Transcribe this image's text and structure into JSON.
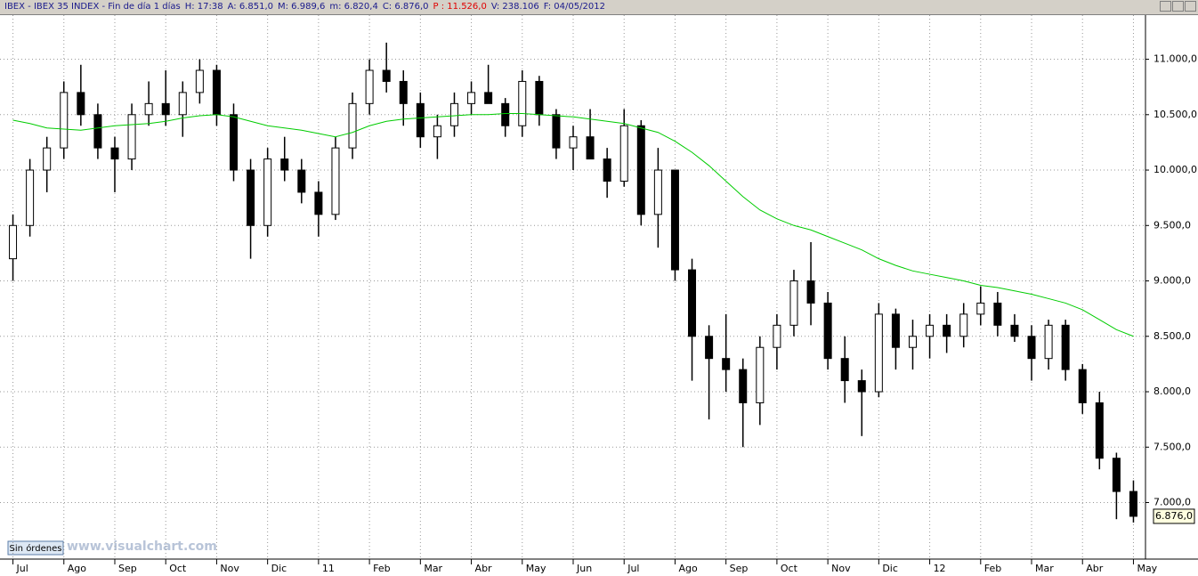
{
  "header": {
    "items": [
      {
        "text": "IBEX - IBEX 35 INDEX - Fin de día 1 días"
      },
      {
        "text": "H: 17:38"
      },
      {
        "text": "A: 6.851,0"
      },
      {
        "text": "M: 6.989,6"
      },
      {
        "text": "m: 6.820,4"
      },
      {
        "text": "C: 6.876,0"
      },
      {
        "text": "P : 11.526,0",
        "color": "#e00000"
      },
      {
        "text": "V: 238.106"
      },
      {
        "text": "F: 04/05/2012"
      }
    ]
  },
  "status": "Sin órdenes",
  "watermark": "www.visualchart.com",
  "chart_data": {
    "type": "candlestick",
    "categories": [
      "Jul",
      null,
      null,
      "Ago",
      null,
      null,
      "Sep",
      null,
      null,
      "Oct",
      null,
      null,
      "Nov",
      null,
      null,
      "Dic",
      null,
      null,
      "11",
      null,
      null,
      "Feb",
      null,
      null,
      "Mar",
      null,
      null,
      "Abr",
      null,
      null,
      "May",
      null,
      null,
      "Jun",
      null,
      null,
      "Jul",
      null,
      null,
      "Ago",
      null,
      null,
      "Sep",
      null,
      null,
      "Oct",
      null,
      null,
      "Nov",
      null,
      null,
      "Dic",
      null,
      null,
      "12",
      null,
      null,
      "Feb",
      null,
      null,
      "Mar",
      null,
      null,
      "Abr",
      null,
      null,
      "May"
    ],
    "open": [
      9200,
      9500,
      10000,
      10200,
      10700,
      10500,
      10200,
      10100,
      10500,
      10600,
      10500,
      10700,
      10900,
      10500,
      10000,
      9500,
      10100,
      10000,
      9800,
      9600,
      10200,
      10600,
      10900,
      10800,
      10600,
      10300,
      10400,
      10600,
      10700,
      10600,
      10400,
      10800,
      10500,
      10200,
      10300,
      10100,
      9900,
      10400,
      9600,
      10000,
      9100,
      8500,
      8300,
      8200,
      7900,
      8400,
      8600,
      9000,
      8800,
      8300,
      8100,
      8000,
      8700,
      8400,
      8500,
      8600,
      8500,
      8700,
      8800,
      8600,
      8500,
      8300,
      8600,
      8200,
      7900,
      7400,
      7100
    ],
    "high": [
      9600,
      10100,
      10300,
      10800,
      10950,
      10600,
      10300,
      10600,
      10800,
      10900,
      10800,
      11000,
      10950,
      10600,
      10100,
      10200,
      10300,
      10100,
      9900,
      10300,
      10700,
      11000,
      11150,
      10900,
      10700,
      10500,
      10700,
      10800,
      10950,
      10650,
      10900,
      10850,
      10550,
      10400,
      10550,
      10200,
      10550,
      10450,
      10200,
      10000,
      9200,
      8600,
      8700,
      8300,
      8500,
      8700,
      9100,
      9350,
      8900,
      8500,
      8200,
      8800,
      8750,
      8650,
      8700,
      8700,
      8800,
      8950,
      8900,
      8700,
      8600,
      8650,
      8650,
      8250,
      8000,
      7450,
      7200
    ],
    "low": [
      9000,
      9400,
      9800,
      10100,
      10400,
      10100,
      9800,
      10000,
      10400,
      10400,
      10300,
      10600,
      10400,
      9900,
      9200,
      9400,
      9900,
      9700,
      9400,
      9550,
      10100,
      10500,
      10700,
      10400,
      10200,
      10100,
      10300,
      10500,
      10600,
      10300,
      10300,
      10400,
      10100,
      10000,
      10100,
      9750,
      9850,
      9500,
      9300,
      9000,
      8100,
      7750,
      8000,
      7500,
      7700,
      8200,
      8500,
      8600,
      8200,
      7900,
      7600,
      7950,
      8200,
      8200,
      8300,
      8350,
      8400,
      8600,
      8500,
      8450,
      8100,
      8200,
      8100,
      7800,
      7300,
      6850,
      6820
    ],
    "close": [
      9500,
      10000,
      10200,
      10700,
      10500,
      10200,
      10100,
      10500,
      10600,
      10500,
      10700,
      10900,
      10500,
      10000,
      9500,
      10100,
      10000,
      9800,
      9600,
      10200,
      10600,
      10900,
      10800,
      10600,
      10300,
      10400,
      10600,
      10700,
      10600,
      10400,
      10800,
      10500,
      10200,
      10300,
      10100,
      9900,
      10400,
      9600,
      10000,
      9100,
      8500,
      8300,
      8200,
      7900,
      8400,
      8600,
      9000,
      8800,
      8300,
      8100,
      8000,
      8700,
      8400,
      8500,
      8600,
      8500,
      8700,
      8800,
      8600,
      8500,
      8300,
      8600,
      8200,
      7900,
      7400,
      7100,
      6876
    ],
    "candle_color": "#000000",
    "ma": {
      "color": "#00cc00",
      "values": [
        10450,
        10420,
        10380,
        10370,
        10360,
        10380,
        10400,
        10410,
        10420,
        10440,
        10470,
        10490,
        10500,
        10480,
        10440,
        10400,
        10380,
        10360,
        10330,
        10300,
        10340,
        10400,
        10440,
        10460,
        10470,
        10480,
        10490,
        10500,
        10500,
        10510,
        10510,
        10500,
        10490,
        10480,
        10460,
        10440,
        10420,
        10380,
        10340,
        10260,
        10160,
        10040,
        9900,
        9760,
        9640,
        9560,
        9500,
        9460,
        9400,
        9340,
        9280,
        9200,
        9140,
        9090,
        9060,
        9030,
        9000,
        8960,
        8940,
        8910,
        8880,
        8840,
        8800,
        8740,
        8650,
        8560,
        8500
      ]
    },
    "last_price": {
      "value": 6876,
      "label": "6.876,0"
    },
    "ylim": [
      6490,
      11390
    ],
    "yticks": [
      {
        "value": 7000,
        "label": "7.000,0"
      },
      {
        "value": 7500,
        "label": "7.500,0"
      },
      {
        "value": 8000,
        "label": "8.000,0"
      },
      {
        "value": 8500,
        "label": "8.500,0"
      },
      {
        "value": 9000,
        "label": "9.000,0"
      },
      {
        "value": 9500,
        "label": "9.500,0"
      },
      {
        "value": 10000,
        "label": "10.000,0"
      },
      {
        "value": 10500,
        "label": "10.500,0"
      },
      {
        "value": 11000,
        "label": "11.000,0"
      }
    ],
    "grid": true
  }
}
